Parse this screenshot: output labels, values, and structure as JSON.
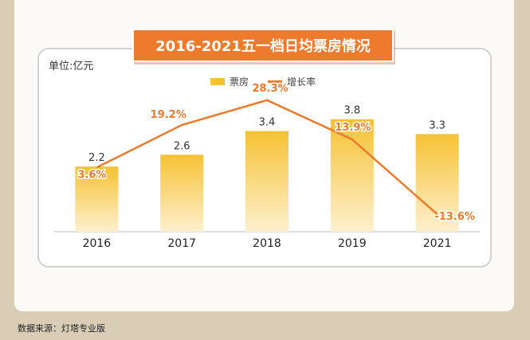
{
  "title": "2016-2021五一档日均票房情况",
  "unit": "单位:亿元",
  "source": "数据来源：灯塔专业版",
  "legend": {
    "bar": "票房",
    "line": "增长率"
  },
  "colors": {
    "bar_top": "#f6c234",
    "bar_bottom": "#fdf0cf",
    "line": "#ec7a2b",
    "title_bg": "#ee7a2d"
  },
  "chart_data": {
    "type": "bar",
    "categories": [
      "2016",
      "2017",
      "2018",
      "2019",
      "2021"
    ],
    "series": [
      {
        "name": "票房",
        "type": "bar",
        "values": [
          2.2,
          2.6,
          3.4,
          3.8,
          3.3
        ]
      },
      {
        "name": "增长率",
        "type": "line",
        "values": [
          3.6,
          19.2,
          28.3,
          13.9,
          -13.6
        ],
        "labels": [
          "3.6%",
          "19.2%",
          "28.3%",
          "13.9%",
          "-13.6%"
        ]
      }
    ],
    "bar_labels": [
      "2.2",
      "2.6",
      "3.4",
      "3.8",
      "3.3"
    ],
    "ylim_bar": [
      0,
      4.6
    ],
    "ylim_line": [
      -20,
      30
    ],
    "grid": false,
    "legend_position": "top-center"
  }
}
